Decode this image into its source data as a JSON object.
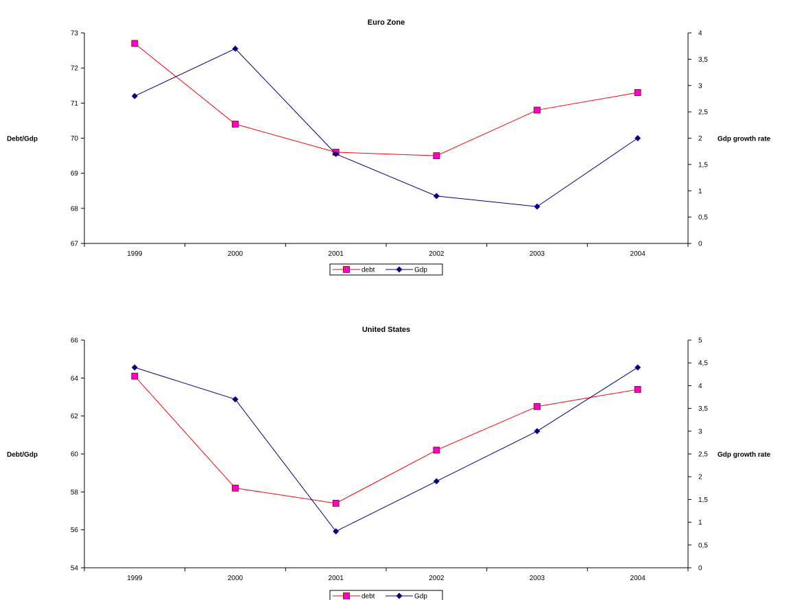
{
  "chart_data": [
    {
      "type": "line",
      "title": "Euro Zone",
      "categories": [
        "1999",
        "2000",
        "2001",
        "2002",
        "2003",
        "2004"
      ],
      "ylabel": "Debt/Gdp",
      "y2label": "Gdp growth rate",
      "ylim": [
        67,
        73
      ],
      "y2lim": [
        0,
        4
      ],
      "yticks": [
        "67",
        "68",
        "69",
        "70",
        "71",
        "72",
        "73"
      ],
      "y2ticks": [
        "0",
        "0,5",
        "1",
        "1,5",
        "2",
        "2,5",
        "3",
        "3,5",
        "4"
      ],
      "legend_position": "bottom",
      "grid": false,
      "series": [
        {
          "name": "debt",
          "axis": "left",
          "color": "#ff0000",
          "marker_color": "#ff00cc",
          "marker": "square",
          "values": [
            72.7,
            70.4,
            69.6,
            69.5,
            70.8,
            71.3
          ]
        },
        {
          "name": "Gdp",
          "axis": "right",
          "color": "#000080",
          "marker_color": "#000080",
          "marker": "diamond",
          "values": [
            2.8,
            3.7,
            1.7,
            0.9,
            0.7,
            2.0
          ]
        }
      ]
    },
    {
      "type": "line",
      "title": "United States",
      "categories": [
        "1999",
        "2000",
        "2001",
        "2002",
        "2003",
        "2004"
      ],
      "ylabel": "Debt/Gdp",
      "y2label": "Gdp growth rate",
      "ylim": [
        54,
        66
      ],
      "y2lim": [
        0,
        5
      ],
      "yticks": [
        "54",
        "56",
        "58",
        "60",
        "62",
        "64",
        "66"
      ],
      "y2ticks": [
        "0",
        "0,5",
        "1",
        "1,5",
        "2",
        "2,5",
        "3",
        "3,5",
        "4",
        "4,5",
        "5"
      ],
      "legend_position": "bottom",
      "grid": false,
      "series": [
        {
          "name": "debt",
          "axis": "left",
          "color": "#ff0000",
          "marker_color": "#ff00cc",
          "marker": "square",
          "values": [
            64.1,
            58.2,
            57.4,
            60.2,
            62.5,
            63.4
          ]
        },
        {
          "name": "Gdp",
          "axis": "right",
          "color": "#000080",
          "marker_color": "#000080",
          "marker": "diamond",
          "values": [
            4.4,
            3.7,
            0.8,
            1.9,
            3.0,
            4.4
          ]
        }
      ]
    }
  ]
}
